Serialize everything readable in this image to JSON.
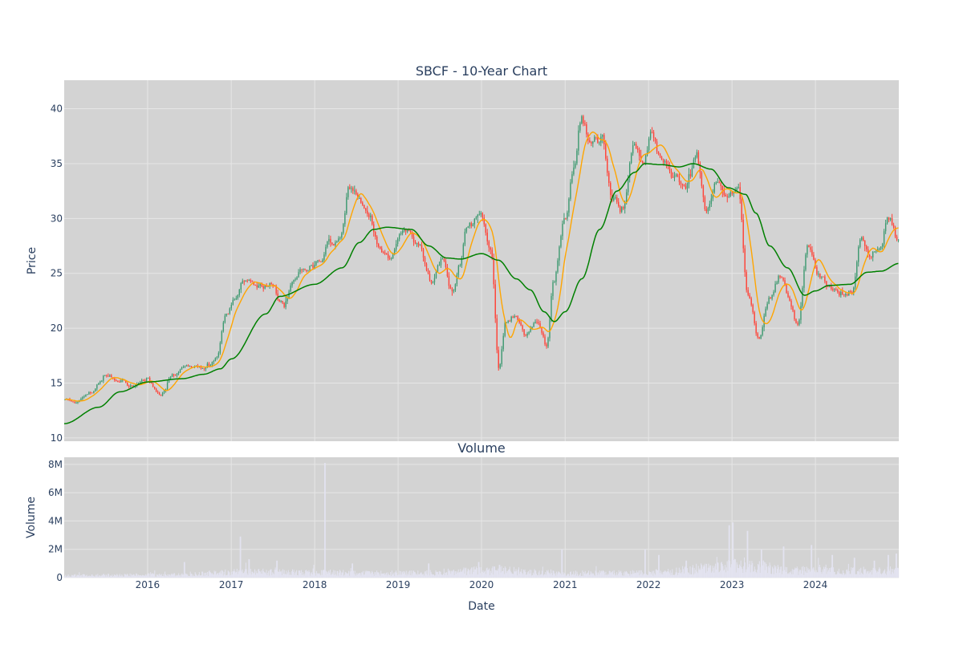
{
  "chart_data": [
    {
      "type": "candlestick",
      "title": "SBCF - 10-Year Chart",
      "xlabel": "",
      "ylabel": "Price",
      "ylim": [
        9.7,
        42.6
      ],
      "yticks": [
        10,
        15,
        20,
        25,
        30,
        35,
        40
      ],
      "grid": true,
      "legend": "none",
      "colors": {
        "up": "#3d9970",
        "down": "#ff4136",
        "ma_short": "#ffa500",
        "ma_long": "#008000",
        "plot_bg": "#d3d3d3",
        "grid": "#e6e6e6"
      },
      "price_path": [
        {
          "x": "2015-01-01",
          "y": 13.5
        },
        {
          "x": "2015-03-01",
          "y": 13.2
        },
        {
          "x": "2015-05-01",
          "y": 14.2
        },
        {
          "x": "2015-07-01",
          "y": 15.6
        },
        {
          "x": "2015-09-01",
          "y": 15.3
        },
        {
          "x": "2015-11-01",
          "y": 14.6
        },
        {
          "x": "2016-01-01",
          "y": 15.5
        },
        {
          "x": "2016-03-01",
          "y": 14.0
        },
        {
          "x": "2016-05-01",
          "y": 15.9
        },
        {
          "x": "2016-07-01",
          "y": 16.6
        },
        {
          "x": "2016-09-01",
          "y": 16.3
        },
        {
          "x": "2016-11-01",
          "y": 17.2
        },
        {
          "x": "2016-12-15",
          "y": 21.5
        },
        {
          "x": "2017-01-15",
          "y": 22.5
        },
        {
          "x": "2017-03-01",
          "y": 24.3
        },
        {
          "x": "2017-05-01",
          "y": 23.8
        },
        {
          "x": "2017-07-01",
          "y": 24.0
        },
        {
          "x": "2017-08-20",
          "y": 22.0
        },
        {
          "x": "2017-10-01",
          "y": 24.3
        },
        {
          "x": "2017-12-01",
          "y": 25.2
        },
        {
          "x": "2018-02-01",
          "y": 26.3
        },
        {
          "x": "2018-03-15",
          "y": 27.8
        },
        {
          "x": "2018-05-01",
          "y": 28.5
        },
        {
          "x": "2018-06-01",
          "y": 32.5
        },
        {
          "x": "2018-07-15",
          "y": 32.5
        },
        {
          "x": "2018-09-01",
          "y": 30.0
        },
        {
          "x": "2018-10-15",
          "y": 27.0
        },
        {
          "x": "2018-12-01",
          "y": 26.5
        },
        {
          "x": "2019-02-01",
          "y": 29.0
        },
        {
          "x": "2019-04-01",
          "y": 27.5
        },
        {
          "x": "2019-06-01",
          "y": 24.0
        },
        {
          "x": "2019-07-15",
          "y": 26.0
        },
        {
          "x": "2019-09-01",
          "y": 23.5
        },
        {
          "x": "2019-10-01",
          "y": 26.0
        },
        {
          "x": "2019-11-01",
          "y": 29.5
        },
        {
          "x": "2020-01-01",
          "y": 30.5
        },
        {
          "x": "2020-02-15",
          "y": 27.0
        },
        {
          "x": "2020-03-20",
          "y": 16.5
        },
        {
          "x": "2020-04-20",
          "y": 20.5
        },
        {
          "x": "2020-06-01",
          "y": 21.0
        },
        {
          "x": "2020-07-15",
          "y": 19.5
        },
        {
          "x": "2020-09-01",
          "y": 20.5
        },
        {
          "x": "2020-10-15",
          "y": 18.5
        },
        {
          "x": "2020-11-15",
          "y": 24.0
        },
        {
          "x": "2021-01-01",
          "y": 30.0
        },
        {
          "x": "2021-02-15",
          "y": 35.0
        },
        {
          "x": "2021-03-15",
          "y": 39.0
        },
        {
          "x": "2021-05-01",
          "y": 36.5
        },
        {
          "x": "2021-06-15",
          "y": 37.5
        },
        {
          "x": "2021-08-01",
          "y": 32.0
        },
        {
          "x": "2021-09-15",
          "y": 31.0
        },
        {
          "x": "2021-11-01",
          "y": 37.0
        },
        {
          "x": "2021-12-15",
          "y": 35.0
        },
        {
          "x": "2022-01-15",
          "y": 38.0
        },
        {
          "x": "2022-03-01",
          "y": 35.0
        },
        {
          "x": "2022-05-01",
          "y": 33.5
        },
        {
          "x": "2022-06-15",
          "y": 33.0
        },
        {
          "x": "2022-08-01",
          "y": 35.5
        },
        {
          "x": "2022-09-15",
          "y": 31.0
        },
        {
          "x": "2022-11-01",
          "y": 33.5
        },
        {
          "x": "2022-12-15",
          "y": 32.0
        },
        {
          "x": "2023-02-01",
          "y": 33.0
        },
        {
          "x": "2023-03-15",
          "y": 23.0
        },
        {
          "x": "2023-05-01",
          "y": 19.0
        },
        {
          "x": "2023-06-15",
          "y": 22.5
        },
        {
          "x": "2023-08-01",
          "y": 25.0
        },
        {
          "x": "2023-09-15",
          "y": 22.5
        },
        {
          "x": "2023-10-20",
          "y": 20.0
        },
        {
          "x": "2023-12-01",
          "y": 27.5
        },
        {
          "x": "2024-01-15",
          "y": 25.0
        },
        {
          "x": "2024-03-01",
          "y": 24.0
        },
        {
          "x": "2024-04-15",
          "y": 23.0
        },
        {
          "x": "2024-06-15",
          "y": 23.0
        },
        {
          "x": "2024-07-20",
          "y": 28.0
        },
        {
          "x": "2024-09-01",
          "y": 26.5
        },
        {
          "x": "2024-10-15",
          "y": 27.5
        },
        {
          "x": "2024-11-15",
          "y": 30.5
        },
        {
          "x": "2024-12-31",
          "y": 28.0
        }
      ],
      "ma_long": [
        {
          "x": "2015-01-01",
          "y": 11.3
        },
        {
          "x": "2015-06-01",
          "y": 12.8
        },
        {
          "x": "2015-09-01",
          "y": 14.2
        },
        {
          "x": "2016-01-01",
          "y": 15.1
        },
        {
          "x": "2016-06-01",
          "y": 15.4
        },
        {
          "x": "2016-09-01",
          "y": 15.8
        },
        {
          "x": "2016-11-15",
          "y": 16.3
        },
        {
          "x": "2017-01-01",
          "y": 17.2
        },
        {
          "x": "2017-06-01",
          "y": 21.3
        },
        {
          "x": "2017-08-01",
          "y": 22.9
        },
        {
          "x": "2018-01-01",
          "y": 24.0
        },
        {
          "x": "2018-05-01",
          "y": 25.5
        },
        {
          "x": "2018-07-15",
          "y": 27.8
        },
        {
          "x": "2018-09-15",
          "y": 29.0
        },
        {
          "x": "2018-11-15",
          "y": 29.2
        },
        {
          "x": "2019-03-01",
          "y": 29.0
        },
        {
          "x": "2019-05-15",
          "y": 27.5
        },
        {
          "x": "2019-08-01",
          "y": 26.4
        },
        {
          "x": "2019-10-01",
          "y": 26.3
        },
        {
          "x": "2020-01-01",
          "y": 26.8
        },
        {
          "x": "2020-03-15",
          "y": 26.2
        },
        {
          "x": "2020-06-01",
          "y": 24.5
        },
        {
          "x": "2020-08-01",
          "y": 23.5
        },
        {
          "x": "2020-10-01",
          "y": 21.5
        },
        {
          "x": "2020-11-15",
          "y": 20.6
        },
        {
          "x": "2021-01-01",
          "y": 21.5
        },
        {
          "x": "2021-03-15",
          "y": 24.5
        },
        {
          "x": "2021-06-01",
          "y": 29.0
        },
        {
          "x": "2021-08-15",
          "y": 32.5
        },
        {
          "x": "2021-11-01",
          "y": 34.2
        },
        {
          "x": "2021-12-15",
          "y": 35.0
        },
        {
          "x": "2022-03-01",
          "y": 34.9
        },
        {
          "x": "2022-05-15",
          "y": 34.7
        },
        {
          "x": "2022-07-15",
          "y": 35.0
        },
        {
          "x": "2022-10-01",
          "y": 34.5
        },
        {
          "x": "2022-12-15",
          "y": 32.8
        },
        {
          "x": "2023-03-01",
          "y": 32.2
        },
        {
          "x": "2023-04-15",
          "y": 30.5
        },
        {
          "x": "2023-06-15",
          "y": 27.5
        },
        {
          "x": "2023-09-01",
          "y": 25.5
        },
        {
          "x": "2023-11-15",
          "y": 23.0
        },
        {
          "x": "2024-01-01",
          "y": 23.4
        },
        {
          "x": "2024-03-01",
          "y": 23.9
        },
        {
          "x": "2024-06-01",
          "y": 24.0
        },
        {
          "x": "2024-08-15",
          "y": 25.1
        },
        {
          "x": "2024-10-15",
          "y": 25.2
        },
        {
          "x": "2024-12-31",
          "y": 25.9
        }
      ]
    },
    {
      "type": "bar",
      "title": "Volume",
      "xlabel": "Date",
      "ylabel": "Volume",
      "ylim": [
        0,
        8500000
      ],
      "yticks": [
        0,
        2000000,
        4000000,
        6000000,
        8000000
      ],
      "ytick_labels": [
        "0",
        "2M",
        "4M",
        "6M",
        "8M"
      ],
      "xlim": [
        "2015-01-01",
        "2024-12-31"
      ],
      "xticks": [
        "2016-01-01",
        "2017-01-01",
        "2018-01-01",
        "2019-01-01",
        "2020-01-01",
        "2021-01-01",
        "2022-01-01",
        "2023-01-01",
        "2024-01-01"
      ],
      "xtick_labels": [
        "2016",
        "2017",
        "2018",
        "2019",
        "2020",
        "2021",
        "2022",
        "2023",
        "2024"
      ],
      "grid": true,
      "bar_color": "#e3e3f0",
      "baseline_level": [
        {
          "x": "2015-01-01",
          "y": 150000
        },
        {
          "x": "2016-06-01",
          "y": 200000
        },
        {
          "x": "2017-01-01",
          "y": 400000
        },
        {
          "x": "2018-01-01",
          "y": 350000
        },
        {
          "x": "2019-01-01",
          "y": 300000
        },
        {
          "x": "2020-03-01",
          "y": 500000
        },
        {
          "x": "2021-01-01",
          "y": 300000
        },
        {
          "x": "2022-01-01",
          "y": 350000
        },
        {
          "x": "2023-03-15",
          "y": 900000
        },
        {
          "x": "2023-09-01",
          "y": 500000
        },
        {
          "x": "2024-06-01",
          "y": 450000
        },
        {
          "x": "2024-12-31",
          "y": 500000
        }
      ],
      "spikes": [
        {
          "x": "2016-06-10",
          "y": 1100000
        },
        {
          "x": "2017-02-10",
          "y": 2900000
        },
        {
          "x": "2017-03-20",
          "y": 1300000
        },
        {
          "x": "2017-07-20",
          "y": 1200000
        },
        {
          "x": "2018-02-15",
          "y": 8100000
        },
        {
          "x": "2018-06-15",
          "y": 1000000
        },
        {
          "x": "2019-05-15",
          "y": 1000000
        },
        {
          "x": "2019-12-20",
          "y": 1100000
        },
        {
          "x": "2020-03-20",
          "y": 900000
        },
        {
          "x": "2020-12-18",
          "y": 2000000
        },
        {
          "x": "2021-12-17",
          "y": 2000000
        },
        {
          "x": "2022-02-15",
          "y": 1600000
        },
        {
          "x": "2022-06-15",
          "y": 1200000
        },
        {
          "x": "2022-12-20",
          "y": 3700000
        },
        {
          "x": "2023-01-05",
          "y": 3900000
        },
        {
          "x": "2023-03-10",
          "y": 3300000
        },
        {
          "x": "2023-05-10",
          "y": 2000000
        },
        {
          "x": "2023-08-15",
          "y": 2200000
        },
        {
          "x": "2023-12-15",
          "y": 2300000
        },
        {
          "x": "2024-03-15",
          "y": 1600000
        },
        {
          "x": "2024-06-20",
          "y": 1400000
        },
        {
          "x": "2024-09-15",
          "y": 1200000
        },
        {
          "x": "2024-11-15",
          "y": 1600000
        },
        {
          "x": "2024-12-20",
          "y": 1700000
        }
      ]
    }
  ]
}
